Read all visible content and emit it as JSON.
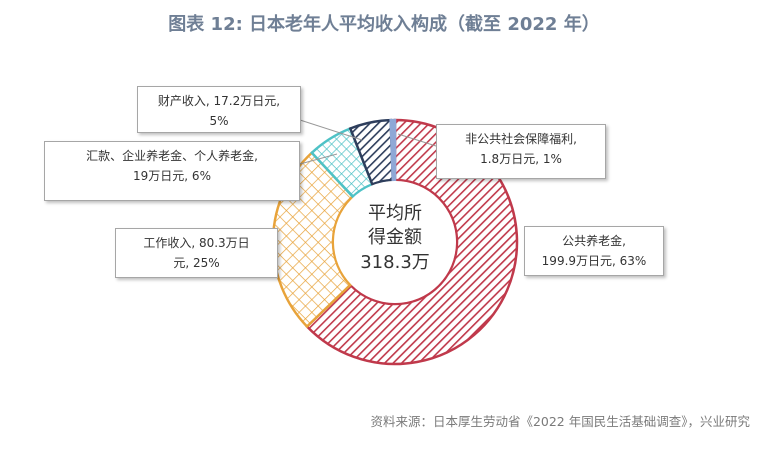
{
  "title": "图表 12: 日本老年人平均收入构成（截至 2022 年）",
  "source": "资料来源：日本厚生劳动省《2022 年国民生活基础调查》，兴业研究",
  "chart_data": {
    "type": "pie",
    "center_label": {
      "line1": "平均所",
      "line2": "得金额",
      "line3": "318.3万"
    },
    "slices": [
      {
        "name": "公共养老金",
        "value": 199.9,
        "unit": "万日元",
        "percent": "63%",
        "color": "#c0394b",
        "pattern": "diagonal"
      },
      {
        "name": "工作收入",
        "value": 80.3,
        "unit": "万日元",
        "percent": "25%",
        "color": "#e8a33a",
        "pattern": "crosshatch"
      },
      {
        "name": "汇款、企业养老金、个人养老金",
        "value": 19,
        "unit": "万日元",
        "percent": "6%",
        "color": "#4ec2c6",
        "pattern": "grid"
      },
      {
        "name": "财产收入",
        "value": 17.2,
        "unit": "万日元",
        "percent": "5%",
        "color": "#2e3e5c",
        "pattern": "diagonal"
      },
      {
        "name": "非公共社会保障福利",
        "value": 1.8,
        "unit": "万日元",
        "percent": "1%",
        "color": "#8fa8d6",
        "pattern": "solid"
      }
    ]
  },
  "labels": {
    "pension": {
      "line1": "公共养老金,",
      "line2": "199.9万日元, 63%"
    },
    "work": {
      "line1": "工作收入, 80.3万日",
      "line2": "元, 25%"
    },
    "remit": {
      "line1": "汇款、企业养老金、个人养老金,",
      "line2": "19万日元, 6%"
    },
    "property": {
      "line1": "财产收入, 17.2万日元,",
      "line2": "5%"
    },
    "welfare": {
      "line1": "非公共社会保障福利,",
      "line2": "1.8万日元, 1%"
    }
  }
}
